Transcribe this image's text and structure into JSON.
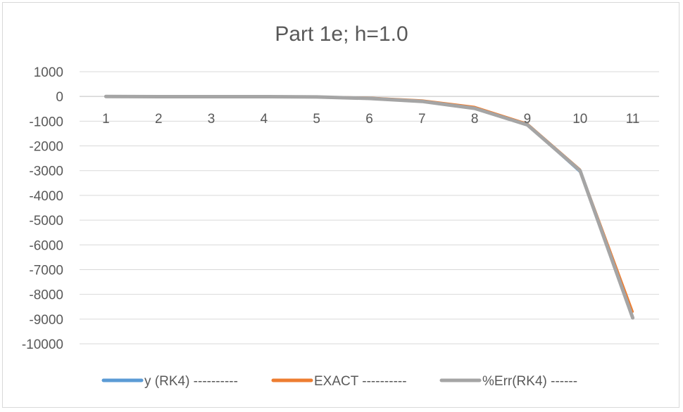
{
  "chart_data": {
    "type": "line",
    "title": "Part 1e; h=1.0",
    "xlabel": "",
    "ylabel": "",
    "categories": [
      "1",
      "2",
      "3",
      "4",
      "5",
      "6",
      "7",
      "8",
      "9",
      "10",
      "11"
    ],
    "ylim": [
      -10000,
      1000
    ],
    "ytick_step": 1000,
    "yticks": [
      "1000",
      "0",
      "-1000",
      "-2000",
      "-3000",
      "-4000",
      "-5000",
      "-6000",
      "-7000",
      "-8000",
      "-9000",
      "-10000"
    ],
    "grid": true,
    "legend_position": "bottom",
    "series": [
      {
        "name": "y (RK4) ----------",
        "color": "#5b9bd5",
        "values": [
          0,
          -10,
          -10,
          -10,
          -15,
          -60,
          -180,
          -460,
          -1150,
          -3060,
          -8900
        ]
      },
      {
        "name": "EXACT ----------",
        "color": "#ed7d31",
        "values": [
          0,
          -10,
          -10,
          -10,
          -12,
          -50,
          -160,
          -420,
          -1100,
          -2950,
          -8700
        ]
      },
      {
        "name": "%Err(RK4) ------",
        "color": "#a5a5a5",
        "values": [
          0,
          -10,
          -10,
          -10,
          -20,
          -80,
          -200,
          -480,
          -1150,
          -3000,
          -8950
        ]
      }
    ]
  }
}
